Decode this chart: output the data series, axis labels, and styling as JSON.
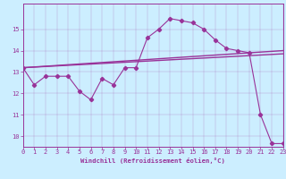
{
  "xlabel": "Windchill (Refroidissement éolien,°C)",
  "xlim": [
    0,
    23
  ],
  "ylim": [
    9.5,
    16.2
  ],
  "xticks": [
    0,
    1,
    2,
    3,
    4,
    5,
    6,
    7,
    8,
    9,
    10,
    11,
    12,
    13,
    14,
    15,
    16,
    17,
    18,
    19,
    20,
    21,
    22,
    23
  ],
  "yticks": [
    10,
    11,
    12,
    13,
    14,
    15
  ],
  "bg_color": "#cceeff",
  "line_color": "#993399",
  "line1_x": [
    0,
    1,
    2,
    3,
    4,
    5,
    6,
    7,
    8,
    9,
    10,
    11,
    12,
    13,
    14,
    15,
    16,
    17,
    18,
    19,
    20,
    21,
    22,
    23
  ],
  "line1_y": [
    13.2,
    12.4,
    12.8,
    12.8,
    12.8,
    12.1,
    11.7,
    12.7,
    12.4,
    13.2,
    13.2,
    14.6,
    15.0,
    15.5,
    15.4,
    15.3,
    15.0,
    14.5,
    14.1,
    14.0,
    13.9,
    11.0,
    9.65,
    9.65
  ],
  "trend1_x": [
    0,
    23
  ],
  "trend1_y": [
    13.2,
    14.0
  ],
  "trend2_x": [
    0,
    23
  ],
  "trend2_y": [
    13.2,
    13.85
  ]
}
